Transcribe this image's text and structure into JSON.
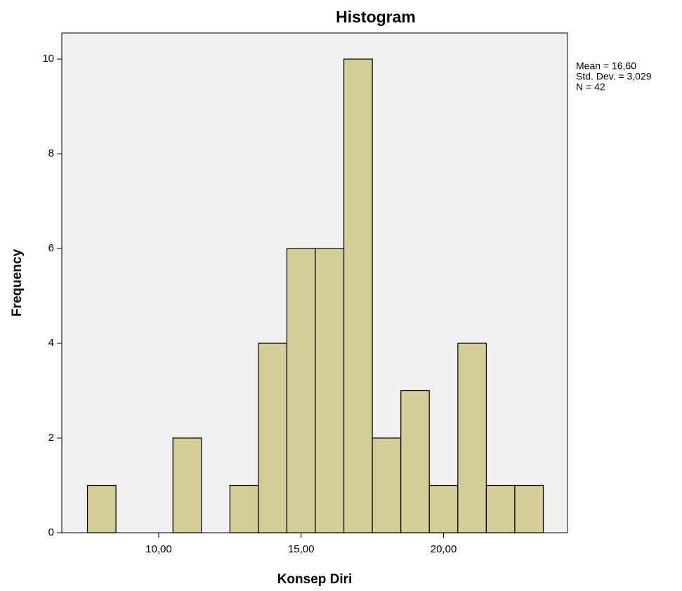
{
  "chart_data": {
    "type": "histogram",
    "title": "Histogram",
    "x_label": "Konsep Diri",
    "y_label": "Frequency",
    "annotations": [
      "Mean = 16,60",
      "Std. Dev. = 3,029",
      "N = 42"
    ],
    "bins": [
      7.5,
      8.5,
      9.5,
      10.5,
      11.5,
      12.5,
      13.5,
      14.5,
      15.5,
      16.5,
      17.5,
      18.5,
      19.5,
      20.5,
      21.5,
      22.5,
      23.5
    ],
    "values": [
      1,
      0,
      0,
      2,
      0,
      1,
      4,
      6,
      6,
      10,
      2,
      3,
      1,
      4,
      1,
      1
    ],
    "color": "#d3ce97",
    "xlim": [
      6.6,
      24.35
    ],
    "ylim": [
      0,
      10.55
    ],
    "xticks": [
      {
        "value": 10,
        "label": "10,00"
      },
      {
        "value": 15,
        "label": "15,00"
      },
      {
        "value": 20,
        "label": "20,00"
      }
    ],
    "yticks": [
      0,
      2,
      4,
      6,
      8,
      10
    ],
    "grid": false
  }
}
